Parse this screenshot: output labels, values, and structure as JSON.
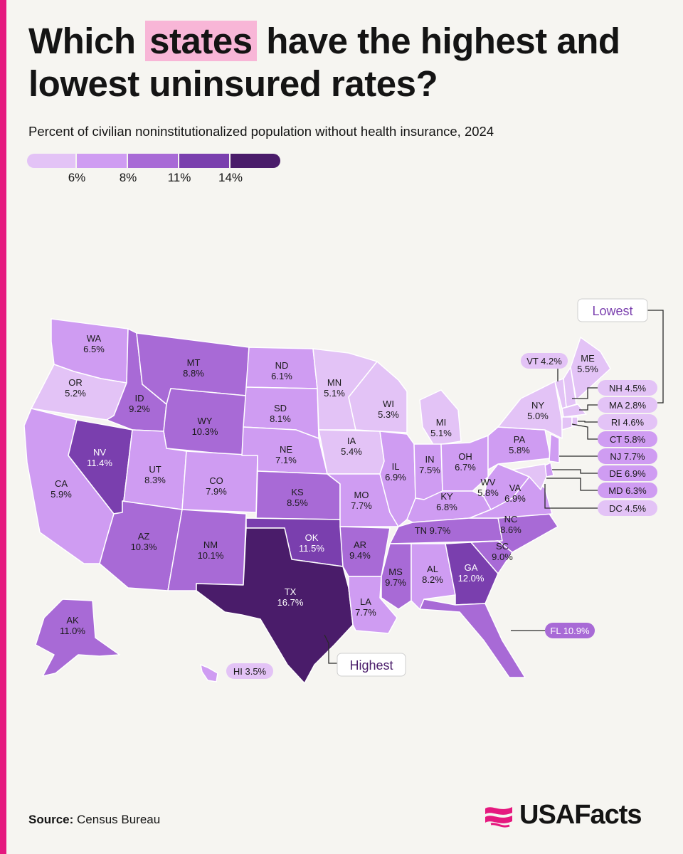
{
  "title": {
    "pre": "Which ",
    "highlight": "states",
    "post": " have the highest and lowest uninsured rates?"
  },
  "subtitle": "Percent of civilian noninstitutionalized population without health insurance, 2024",
  "legend": {
    "colors": [
      "#e3c3f6",
      "#cf9cf2",
      "#a86ad6",
      "#7a3fae",
      "#4a1c6a"
    ],
    "ticks": [
      "6%",
      "8%",
      "11%",
      "14%"
    ]
  },
  "annotations": {
    "lowest": "Lowest",
    "highest": "Highest"
  },
  "states": {
    "WA": "WA",
    "WA_v": "6.5%",
    "OR": "OR",
    "OR_v": "5.2%",
    "CA": "CA",
    "CA_v": "5.9%",
    "NV": "NV",
    "NV_v": "11.4%",
    "ID": "ID",
    "ID_v": "9.2%",
    "MT": "MT",
    "MT_v": "8.8%",
    "WY": "WY",
    "WY_v": "10.3%",
    "UT": "UT",
    "UT_v": "8.3%",
    "CO": "CO",
    "CO_v": "7.9%",
    "AZ": "AZ",
    "AZ_v": "10.3%",
    "NM": "NM",
    "NM_v": "10.1%",
    "ND": "ND",
    "ND_v": "6.1%",
    "SD": "SD",
    "SD_v": "8.1%",
    "NE": "NE",
    "NE_v": "7.1%",
    "KS": "KS",
    "KS_v": "8.5%",
    "OK": "OK",
    "OK_v": "11.5%",
    "TX": "TX",
    "TX_v": "16.7%",
    "MN": "MN",
    "MN_v": "5.1%",
    "IA": "IA",
    "IA_v": "5.4%",
    "MO": "MO",
    "MO_v": "7.7%",
    "AR": "AR",
    "AR_v": "9.4%",
    "LA": "LA",
    "LA_v": "7.7%",
    "WI": "WI",
    "WI_v": "5.3%",
    "IL": "IL",
    "IL_v": "6.9%",
    "MI": "MI",
    "MI_v": "5.1%",
    "IN": "IN",
    "IN_v": "7.5%",
    "OH": "OH",
    "OH_v": "6.7%",
    "KY": "KY",
    "KY_v": "6.8%",
    "TN_full": "TN 9.7%",
    "MS": "MS",
    "MS_v": "9.7%",
    "AL": "AL",
    "AL_v": "8.2%",
    "GA": "GA",
    "GA_v": "12.0%",
    "FL_full": "FL 10.9%",
    "SC": "SC",
    "SC_v": "9.0%",
    "NC": "NC",
    "NC_v": "8.6%",
    "VA": "VA",
    "VA_v": "6.9%",
    "WV": "WV",
    "WV_v": "5.8%",
    "PA": "PA",
    "PA_v": "5.8%",
    "NY": "NY",
    "NY_v": "5.0%",
    "ME": "ME",
    "ME_v": "5.5%",
    "VT_full": "VT 4.2%",
    "NH_full": "NH 4.5%",
    "MA_full": "MA 2.8%",
    "RI_full": "RI 4.6%",
    "CT_full": "CT 5.8%",
    "NJ_full": "NJ 7.7%",
    "DE_full": "DE 6.9%",
    "MD_full": "MD 6.3%",
    "DC_full": "DC 4.5%",
    "AK": "AK",
    "AK_v": "11.0%",
    "HI_full": "HI 3.5%"
  },
  "source": {
    "label": "Source:",
    "text": " Census Bureau"
  },
  "brand": "USAFacts"
}
